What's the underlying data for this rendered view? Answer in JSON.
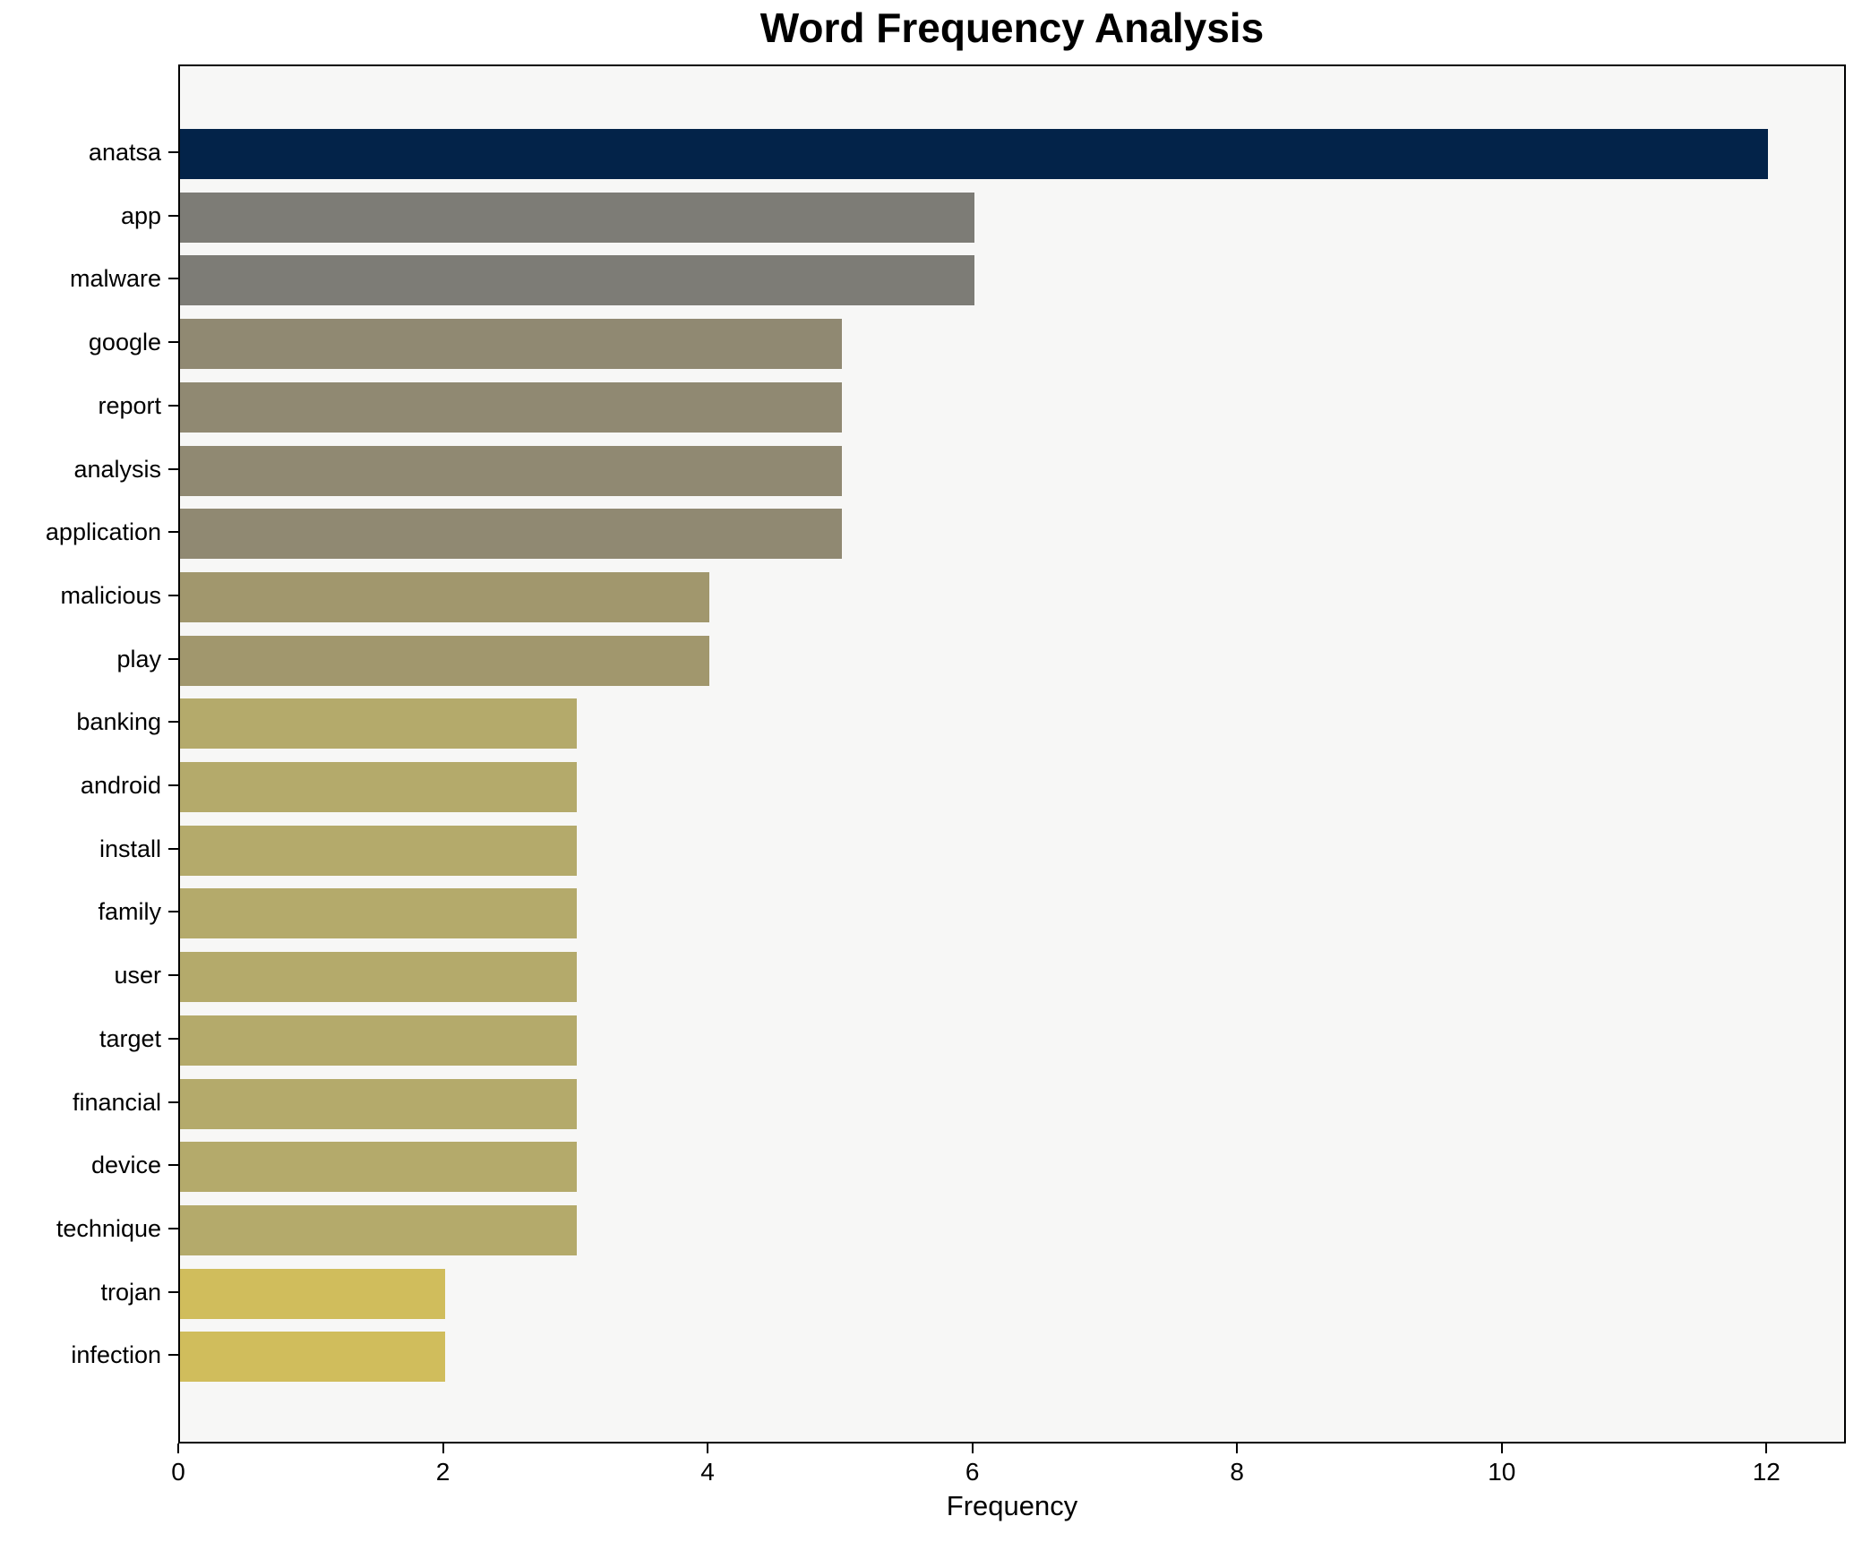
{
  "chart_data": {
    "type": "bar",
    "orientation": "horizontal",
    "title": "Word Frequency Analysis",
    "xlabel": "Frequency",
    "ylabel": "",
    "categories": [
      "anatsa",
      "app",
      "malware",
      "google",
      "report",
      "analysis",
      "application",
      "malicious",
      "play",
      "banking",
      "android",
      "install",
      "family",
      "user",
      "target",
      "financial",
      "device",
      "technique",
      "trojan",
      "infection"
    ],
    "values": [
      12,
      6,
      6,
      5,
      5,
      5,
      5,
      4,
      4,
      3,
      3,
      3,
      3,
      3,
      3,
      3,
      3,
      3,
      2,
      2
    ],
    "bar_colors": [
      "#032349",
      "#7d7c76",
      "#7d7c76",
      "#908972",
      "#908972",
      "#908972",
      "#908972",
      "#a1976d",
      "#a1976d",
      "#b4aa6b",
      "#b4aa6b",
      "#b4aa6b",
      "#b4aa6b",
      "#b4aa6b",
      "#b4aa6b",
      "#b4aa6b",
      "#b4aa6b",
      "#b4aa6b",
      "#d0bd5c",
      "#d0bd5c"
    ],
    "xticks": [
      0,
      2,
      4,
      6,
      8,
      10,
      12
    ],
    "xlim": [
      0,
      12.6
    ],
    "grid": false,
    "legend_position": "none",
    "plot_background": "#f7f7f6",
    "spine_color": "#000000"
  }
}
